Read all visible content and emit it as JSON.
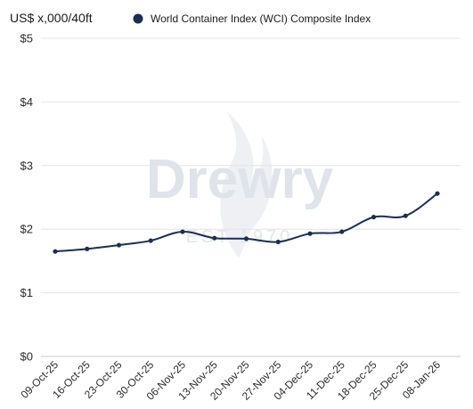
{
  "chart_data": {
    "type": "line",
    "unit_label": "US$ x,000/40ft",
    "y_tick_labels": [
      "$0",
      "$1",
      "$2",
      "$3",
      "$4",
      "$5"
    ],
    "ylim": [
      0,
      5
    ],
    "categories": [
      "09-Oct-25",
      "16-Oct-25",
      "23-Oct-25",
      "30-Oct-25",
      "06-Nov-25",
      "13-Nov-25",
      "20-Nov-25",
      "27-Nov-25",
      "04-Dec-25",
      "11-Dec-25",
      "18-Dec-25",
      "25-Dec-25",
      "08-Jan-26"
    ],
    "series": [
      {
        "name": "World Container Index (WCI) Composite Index",
        "color": "#1c2e52",
        "values": [
          1.65,
          1.69,
          1.75,
          1.82,
          1.96,
          1.86,
          1.85,
          1.8,
          1.93,
          1.96,
          2.19,
          2.21,
          2.56
        ]
      }
    ],
    "grid": "horizontal",
    "legend_position": "top",
    "watermark": {
      "brand": "Drewry",
      "tagline": "EST 1970"
    }
  }
}
